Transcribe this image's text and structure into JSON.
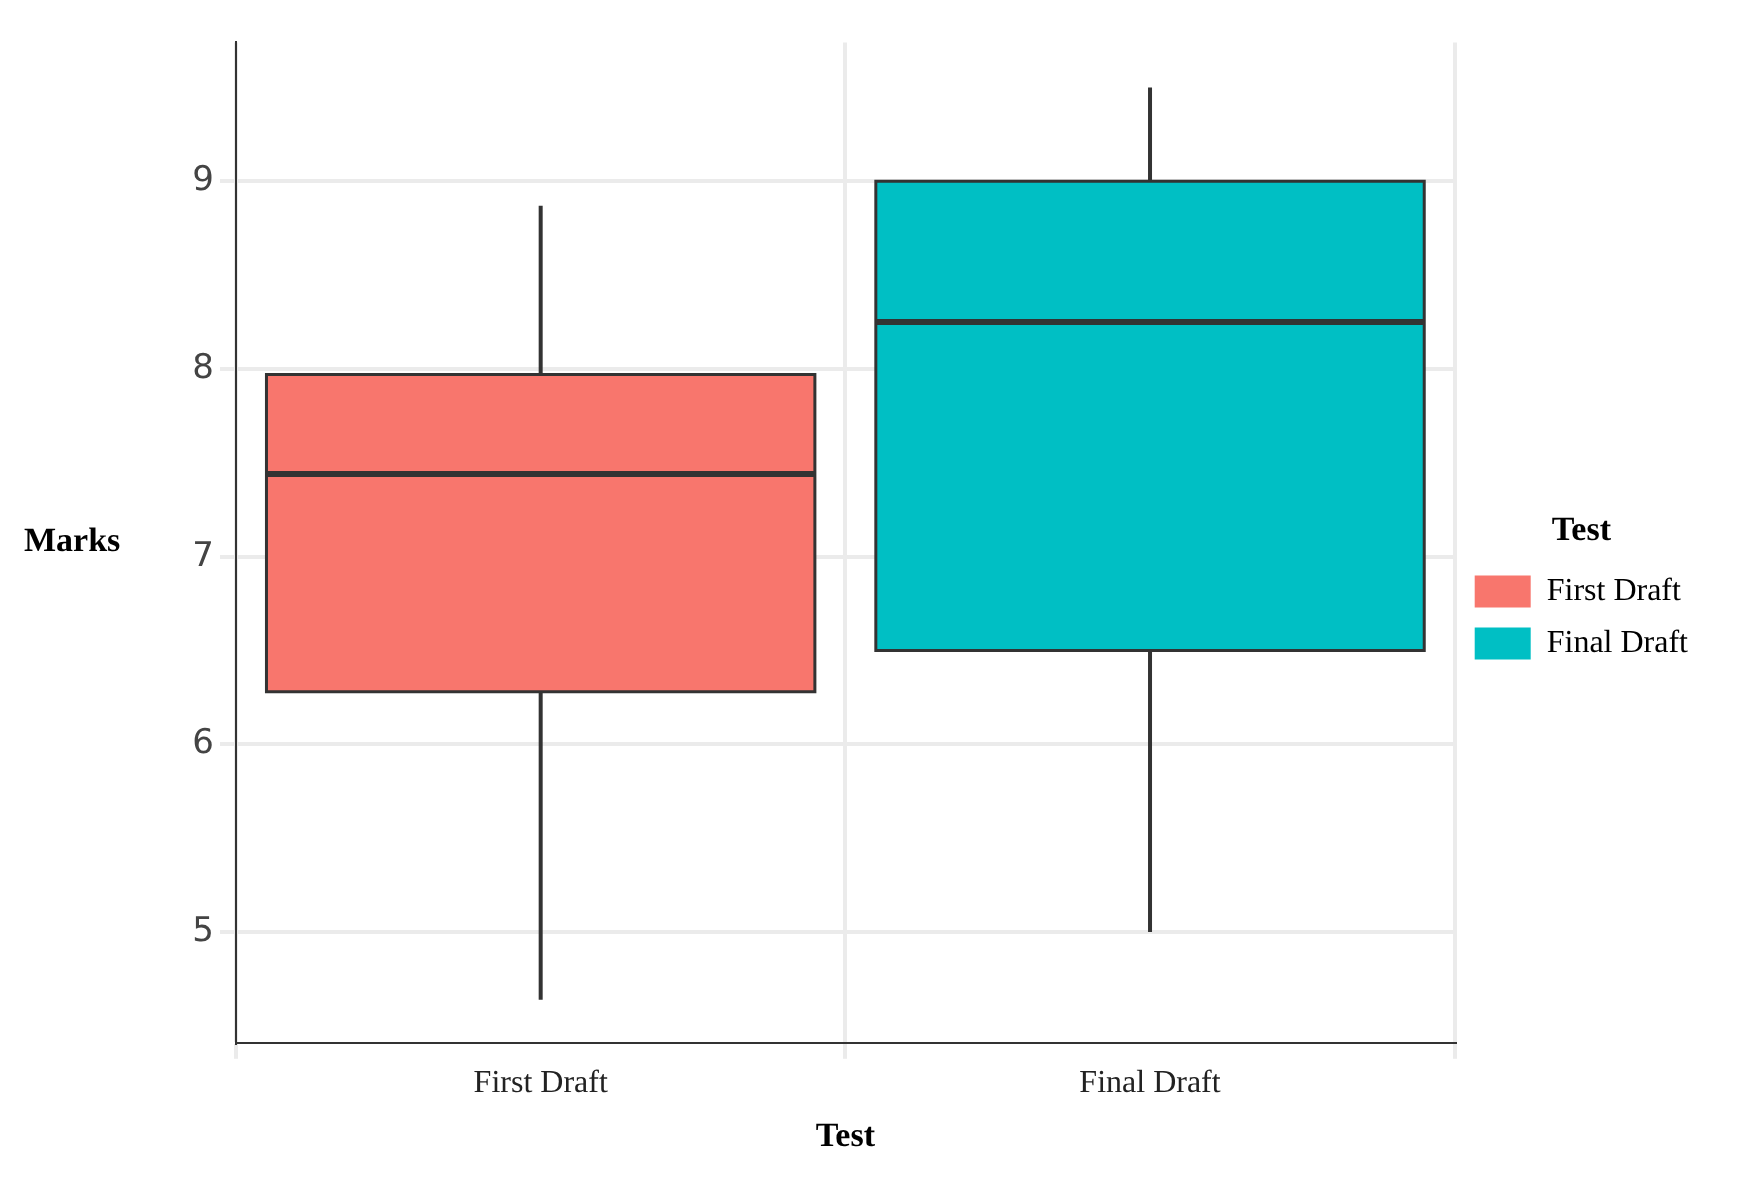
{
  "chart_data": {
    "type": "box",
    "xlabel": "Test",
    "ylabel": "Marks",
    "legend_title": "Test",
    "categories": [
      "First Draft",
      "Final Draft"
    ],
    "series": [
      {
        "name": "First Draft",
        "color": "#f8766d",
        "boxes": [
          {
            "low": 4.64,
            "q1": 6.28,
            "median": 7.44,
            "q3": 7.97,
            "high": 8.87
          },
          null
        ]
      },
      {
        "name": "Final Draft",
        "color": "#00bfc4",
        "boxes": [
          null,
          {
            "low": 5,
            "q1": 6.5,
            "median": 8.25,
            "q3": 9,
            "high": 9.5
          }
        ]
      }
    ],
    "ylim": [
      4.41,
      9.74
    ],
    "yticks": [
      5,
      6,
      7,
      8,
      9
    ],
    "grid": true,
    "legend": "right"
  }
}
